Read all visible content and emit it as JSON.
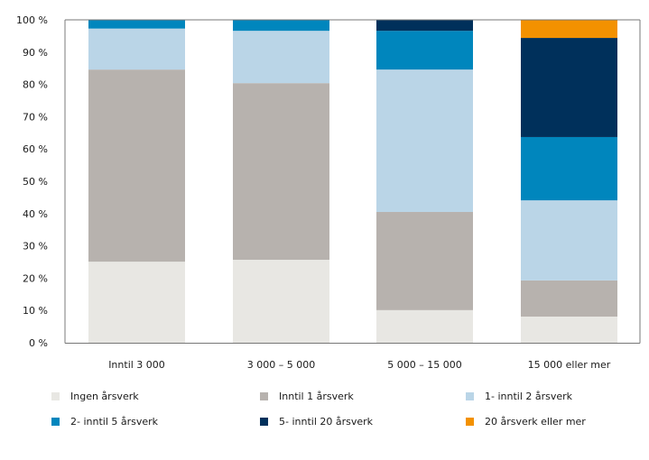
{
  "chart_data": {
    "type": "bar",
    "stacked": true,
    "title": "",
    "xlabel": "",
    "ylabel": "",
    "ylim": [
      0,
      100
    ],
    "yticks": [
      0,
      10,
      20,
      30,
      40,
      50,
      60,
      70,
      80,
      90,
      100
    ],
    "ytick_labels": [
      "0 %",
      "10 %",
      "20 %",
      "30 %",
      "40 %",
      "50 %",
      "60 %",
      "70 %",
      "80 %",
      "90 %",
      "100 %"
    ],
    "grid": false,
    "legend_position": "bottom",
    "categories": [
      "Inntil 3 000",
      "3 000 – 5 000",
      "5 000 – 15 000",
      "15 000 eller mer"
    ],
    "series": [
      {
        "name": "Ingen årsverk",
        "color": "#E8E7E3",
        "values": [
          25.1,
          25.7,
          10.1,
          8.1
        ]
      },
      {
        "name": "Inntil 1 årsverk",
        "color": "#B7B2AE",
        "values": [
          59.5,
          54.7,
          30.4,
          11.2
        ]
      },
      {
        "name": "1- inntil 2 årsverk",
        "color": "#BAD5E7",
        "values": [
          12.7,
          16.2,
          44.1,
          24.8
        ]
      },
      {
        "name": "2- inntil 5 årsverk",
        "color": "#0086BD",
        "values": [
          2.7,
          3.4,
          12.0,
          19.6
        ]
      },
      {
        "name": "5- inntil 20 årsverk",
        "color": "#00305B",
        "values": [
          0,
          0,
          3.4,
          30.7
        ]
      },
      {
        "name": "20 årsverk eller mer",
        "color": "#F39100",
        "values": [
          0,
          0,
          0,
          5.6
        ]
      }
    ]
  }
}
